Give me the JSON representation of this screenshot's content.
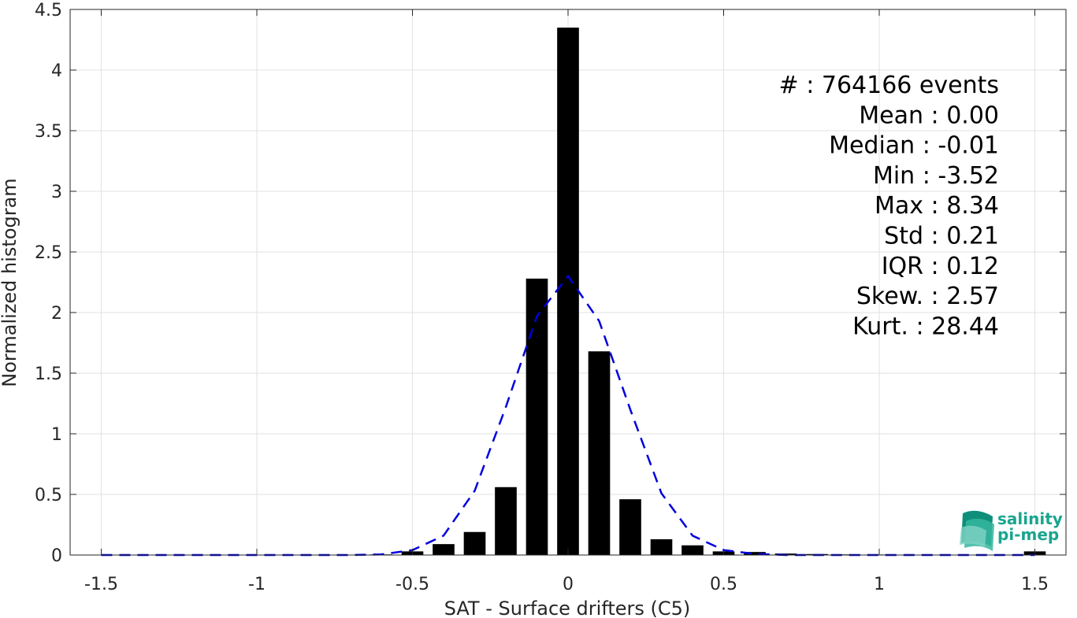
{
  "chart_data": {
    "type": "bar",
    "xlabel": "SAT - Surface drifters (C5)",
    "ylabel": "Normalized histogram",
    "xlim": [
      -1.6,
      1.6
    ],
    "ylim": [
      0,
      4.5
    ],
    "xticks": [
      -1.5,
      -1,
      -0.5,
      0,
      0.5,
      1,
      1.5
    ],
    "xtick_labels": [
      "-1.5",
      "-1",
      "-0.5",
      "0",
      "0.5",
      "1",
      "1.5"
    ],
    "yticks": [
      0,
      0.5,
      1,
      1.5,
      2,
      2.5,
      3,
      3.5,
      4,
      4.5
    ],
    "ytick_labels": [
      "0",
      "0.5",
      "1",
      "1.5",
      "2",
      "2.5",
      "3",
      "3.5",
      "4",
      "4.5"
    ],
    "grid": true,
    "bar_color": "#000000",
    "fit_color": "#0000dd",
    "bins": {
      "x": [
        -1.5,
        -1.4,
        -1.3,
        -1.2,
        -1.1,
        -1.0,
        -0.9,
        -0.8,
        -0.7,
        -0.6,
        -0.5,
        -0.4,
        -0.3,
        -0.2,
        -0.1,
        0.0,
        0.1,
        0.2,
        0.3,
        0.4,
        0.5,
        0.6,
        0.7,
        0.8,
        0.9,
        1.0,
        1.1,
        1.2,
        1.3,
        1.4,
        1.5
      ],
      "values": [
        0.003,
        0.002,
        0.002,
        0.002,
        0.002,
        0.002,
        0.002,
        0.002,
        0.003,
        0.005,
        0.03,
        0.09,
        0.19,
        0.56,
        2.28,
        4.35,
        1.68,
        0.46,
        0.13,
        0.08,
        0.03,
        0.025,
        0.012,
        0.008,
        0.005,
        0.004,
        0.003,
        0.003,
        0.003,
        0.003,
        0.03
      ]
    },
    "fit_curve": {
      "style": "dashed",
      "x": [
        -1.5,
        -1.4,
        -1.3,
        -1.2,
        -1.1,
        -1.0,
        -0.9,
        -0.8,
        -0.7,
        -0.6,
        -0.5,
        -0.4,
        -0.3,
        -0.2,
        -0.1,
        0.0,
        0.1,
        0.2,
        0.3,
        0.4,
        0.5,
        0.6,
        0.7,
        0.8,
        0.9,
        1.0,
        1.1,
        1.2,
        1.3,
        1.4,
        1.5
      ],
      "y": [
        0.0,
        0.0,
        0.0,
        0.0,
        0.0,
        0.0,
        0.0,
        0.0,
        0.0,
        0.005,
        0.04,
        0.16,
        0.53,
        1.22,
        1.97,
        2.3,
        1.93,
        1.2,
        0.51,
        0.16,
        0.04,
        0.01,
        0.0,
        0.0,
        0.0,
        0.0,
        0.0,
        0.0,
        0.0,
        0.0,
        0.0
      ]
    },
    "annotations": [
      "#  : 764166 events",
      "Mean : 0.00",
      "Median : -0.01",
      "Min : -3.52",
      "Max : 8.34",
      "Std : 0.21",
      "IQR : 0.12",
      "Skew. : 2.57",
      "Kurt. : 28.44"
    ]
  },
  "logo": {
    "line1": "salinity",
    "line2": "pi-mep",
    "color": "#1aa58f"
  }
}
